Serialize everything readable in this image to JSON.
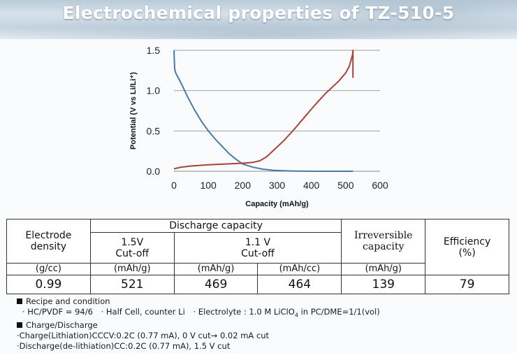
{
  "header": {
    "title": "Electrochemical properties of TZ-510-5"
  },
  "chart_data": {
    "type": "line",
    "title": "",
    "xlabel": "Capacity (mAh/g)",
    "ylabel": "Potential (V vs Li/Li⁺)",
    "xlim": [
      0,
      600
    ],
    "ylim": [
      0,
      1.5
    ],
    "xticks": [
      "0",
      "100",
      "200",
      "300",
      "400",
      "500",
      "600"
    ],
    "yticks": [
      "0.0",
      "0.5",
      "1.0",
      "1.5"
    ],
    "grid": "horizontal",
    "series": [
      {
        "color": "#4a7ba7",
        "x": [
          0,
          2,
          5,
          10,
          20,
          40,
          60,
          80,
          100,
          120,
          140,
          160,
          180,
          200,
          230,
          260,
          290,
          320,
          350,
          380,
          420,
          470,
          521
        ],
        "y": [
          1.5,
          1.27,
          1.22,
          1.18,
          1.1,
          0.92,
          0.76,
          0.62,
          0.5,
          0.4,
          0.31,
          0.22,
          0.15,
          0.09,
          0.05,
          0.025,
          0.012,
          0.006,
          0.003,
          0.001,
          0.0,
          0.0,
          0.0
        ]
      },
      {
        "color": "#a8433a",
        "x": [
          0,
          20,
          50,
          100,
          150,
          200,
          230,
          250,
          270,
          290,
          320,
          350,
          380,
          410,
          440,
          460,
          480,
          500,
          510,
          515,
          520,
          521,
          521
        ],
        "y": [
          0.03,
          0.05,
          0.065,
          0.08,
          0.09,
          0.1,
          0.11,
          0.13,
          0.18,
          0.26,
          0.38,
          0.52,
          0.67,
          0.82,
          0.96,
          1.04,
          1.12,
          1.22,
          1.3,
          1.37,
          1.45,
          1.5,
          1.16
        ]
      }
    ]
  },
  "table": {
    "headers": {
      "electrode_density": "Electrode\ndensity",
      "discharge_capacity": "Discharge capacity",
      "cutoff_15": "1.5V\nCut-off",
      "cutoff_11": "1.1 V\nCut-off",
      "irreversible": "Irreversible\ncapacity",
      "efficiency": "Efficiency\n(%)"
    },
    "units": {
      "density": "(g/cc)",
      "cap15": "(mAh/g)",
      "cap11_g": "(mAh/g)",
      "cap11_cc": "(mAh/cc)",
      "irr": "(mAh/g)"
    },
    "values": {
      "density": "0.99",
      "cap15": "521",
      "cap11_g": "469",
      "cap11_cc": "464",
      "irr": "139",
      "efficiency": "79"
    }
  },
  "notes": {
    "recipe_heading": "Recipe and condition",
    "recipe_line_a": "· HC/PVDF = 94/6",
    "recipe_line_b": "· Half Cell, counter Li",
    "recipe_line_c_pre": "· Electrolyte :  1.0 M LiClO",
    "recipe_line_c_sub": "4",
    "recipe_line_c_post": " in PC/DME=1/1(vol)",
    "charge_heading": "Charge/Discharge",
    "charge_line": "·Charge(Lithiation)CCCV:0.2C (0.77 mA), 0 V cut→ 0.02 mA cut",
    "discharge_line": "·Discharge(de-lithiation)CC:0.2C (0.77 mA), 1.5 V cut"
  }
}
